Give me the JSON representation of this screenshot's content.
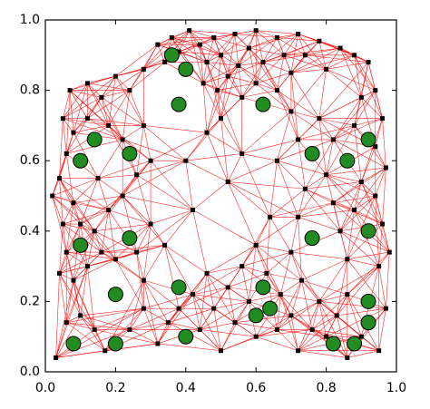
{
  "chart_data": {
    "type": "scatter",
    "xlim": [
      0,
      1
    ],
    "ylim": [
      0,
      1
    ],
    "xticks": [
      {
        "value": 0,
        "label": "0.0"
      },
      0.2,
      0.4,
      0.6,
      0.8,
      {
        "value": 1,
        "label": "1.0"
      }
    ],
    "yticks": [
      {
        "value": 0,
        "label": "0.0"
      },
      0.2,
      0.4,
      0.6,
      0.8,
      {
        "value": 1,
        "label": "1.0"
      }
    ],
    "series": [
      {
        "color": "#000000",
        "marker": "square",
        "edge_color": "#ff0000",
        "x": [
          0.32,
          0.34,
          0.36,
          0.38,
          0.41,
          0.44,
          0.46,
          0.48,
          0.5,
          0.52,
          0.54,
          0.45,
          0.49,
          0.55,
          0.58,
          0.6,
          0.62,
          0.66,
          0.68,
          0.7,
          0.72,
          0.66,
          0.74,
          0.78,
          0.8,
          0.84,
          0.88,
          0.92,
          0.94,
          0.9,
          0.56,
          0.6,
          0.02,
          0.04,
          0.06,
          0.08,
          0.05,
          0.07,
          0.12,
          0.16,
          0.2,
          0.24,
          0.28,
          0.12,
          0.18,
          0.22,
          0.28,
          0.3,
          0.26,
          0.15,
          0.08,
          0.05,
          0.1,
          0.14,
          0.18,
          0.22,
          0.06,
          0.04,
          0.08,
          0.12,
          0.16,
          0.2,
          0.26,
          0.3,
          0.34,
          0.28,
          0.03,
          0.06,
          0.1,
          0.14,
          0.17,
          0.24,
          0.28,
          0.32,
          0.35,
          0.38,
          0.42,
          0.44,
          0.46,
          0.48,
          0.5,
          0.52,
          0.54,
          0.56,
          0.58,
          0.6,
          0.63,
          0.66,
          0.67,
          0.7,
          0.72,
          0.73,
          0.76,
          0.78,
          0.8,
          0.83,
          0.86,
          0.86,
          0.9,
          0.95,
          0.97,
          0.7,
          0.72,
          0.74,
          0.8,
          0.82,
          0.84,
          0.86,
          0.88,
          0.9,
          0.94,
          0.96,
          0.98,
          0.95,
          0.97,
          0.94,
          0.88,
          0.82,
          0.78,
          0.72,
          0.7,
          0.66,
          0.64,
          0.6,
          0.96,
          0.4,
          0.46,
          0.52,
          0.42,
          0.56,
          0.5
        ],
        "y": [
          0.93,
          0.88,
          0.95,
          0.91,
          0.97,
          0.93,
          0.88,
          0.95,
          0.9,
          0.84,
          0.96,
          0.82,
          0.8,
          0.87,
          0.92,
          0.97,
          0.88,
          0.95,
          0.9,
          0.85,
          0.96,
          0.8,
          0.9,
          0.94,
          0.86,
          0.92,
          0.9,
          0.88,
          0.8,
          0.78,
          0.78,
          0.82,
          0.5,
          0.55,
          0.62,
          0.68,
          0.72,
          0.8,
          0.82,
          0.78,
          0.84,
          0.8,
          0.86,
          0.72,
          0.7,
          0.66,
          0.7,
          0.6,
          0.56,
          0.55,
          0.48,
          0.42,
          0.42,
          0.4,
          0.46,
          0.5,
          0.34,
          0.28,
          0.26,
          0.3,
          0.34,
          0.32,
          0.34,
          0.42,
          0.36,
          0.26,
          0.04,
          0.14,
          0.16,
          0.12,
          0.06,
          0.12,
          0.18,
          0.08,
          0.14,
          0.18,
          0.22,
          0.12,
          0.28,
          0.18,
          0.06,
          0.24,
          0.14,
          0.3,
          0.2,
          0.1,
          0.28,
          0.12,
          0.22,
          0.16,
          0.06,
          0.26,
          0.12,
          0.2,
          0.1,
          0.16,
          0.04,
          0.22,
          0.1,
          0.06,
          0.18,
          0.34,
          0.44,
          0.52,
          0.56,
          0.48,
          0.4,
          0.32,
          0.46,
          0.54,
          0.5,
          0.42,
          0.34,
          0.3,
          0.58,
          0.64,
          0.7,
          0.66,
          0.72,
          0.66,
          0.74,
          0.6,
          0.44,
          0.36,
          0.72,
          0.6,
          0.68,
          0.54,
          0.46,
          0.62,
          0.72
        ]
      },
      {
        "color": "#228b22",
        "marker": "circle",
        "x": [
          0.08,
          0.2,
          0.2,
          0.1,
          0.24,
          0.1,
          0.14,
          0.24,
          0.36,
          0.4,
          0.38,
          0.38,
          0.4,
          0.6,
          0.62,
          0.64,
          0.62,
          0.76,
          0.76,
          0.86,
          0.92,
          0.92,
          0.92,
          0.92,
          0.82,
          0.88
        ],
        "y": [
          0.08,
          0.08,
          0.22,
          0.36,
          0.38,
          0.6,
          0.66,
          0.62,
          0.9,
          0.86,
          0.76,
          0.24,
          0.1,
          0.16,
          0.24,
          0.18,
          0.76,
          0.62,
          0.38,
          0.6,
          0.66,
          0.4,
          0.2,
          0.14,
          0.08,
          0.08
        ]
      }
    ]
  }
}
